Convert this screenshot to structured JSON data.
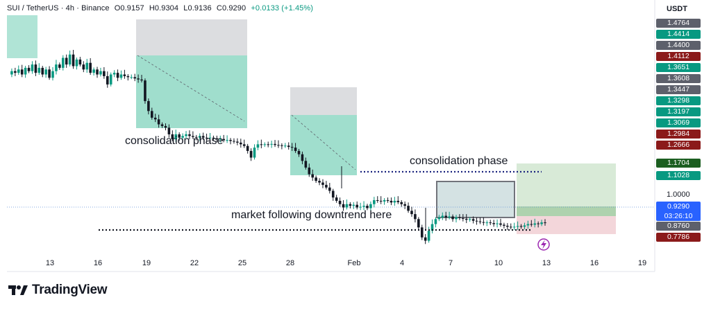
{
  "header": {
    "symbol": "SUI / TetherUS · 4h · Binance",
    "open": "O0.9157",
    "high": "H0.9304",
    "low": "L0.9136",
    "close": "C0.9290",
    "change": "+0.0133 (+1.45%)"
  },
  "price_axis": {
    "currency": "USDT",
    "plain_label": "1.0000",
    "current_price": "0.9290",
    "countdown": "03:26:10"
  },
  "annotations": {
    "consolidation_1": "consolidation phase",
    "consolidation_2": "consolidation phase",
    "downtrend": "market following downtrend here"
  },
  "branding": {
    "wordmark": "TradingView"
  },
  "colors": {
    "up": "#089981",
    "down": "#131722",
    "teal_zone": "#8fd8c4",
    "gray_zone": "#dcdde0",
    "green_zone": "#d8ead7",
    "red_zone": "#f3d6da",
    "marker_purple": "#9c27b0",
    "price_blue": "#2962ff"
  },
  "chart_data": {
    "type": "candlestick",
    "x_tick_labels": [
      "13",
      "16",
      "19",
      "22",
      "25",
      "28",
      "Feb",
      "4",
      "7",
      "10",
      "13",
      "16",
      "19"
    ],
    "ylim": [
      0.75,
      1.5
    ],
    "price_axis_labels": [
      {
        "value": "1.4764",
        "color": "#5d606b"
      },
      {
        "value": "1.4414",
        "color": "#089981"
      },
      {
        "value": "1.4400",
        "color": "#5d606b"
      },
      {
        "value": "1.4112",
        "color": "#8b1a1a"
      },
      {
        "value": "1.3651",
        "color": "#089981"
      },
      {
        "value": "1.3608",
        "color": "#5d606b"
      },
      {
        "value": "1.3447",
        "color": "#5d606b"
      },
      {
        "value": "1.3298",
        "color": "#089981"
      },
      {
        "value": "1.3197",
        "color": "#089981"
      },
      {
        "value": "1.3069",
        "color": "#089981"
      },
      {
        "value": "1.2984",
        "color": "#8b1a1a"
      },
      {
        "value": "1.2666",
        "color": "#8b1a1a"
      },
      {
        "value": "1.1704",
        "color": "#1b5e20"
      },
      {
        "value": "1.1028",
        "color": "#089981"
      },
      {
        "value": "0.8760",
        "color": "#5d606b"
      },
      {
        "value": "0.7786",
        "color": "#8b1a1a"
      }
    ],
    "price_path": [
      [
        0,
        1.33
      ],
      [
        5,
        1.34
      ],
      [
        10,
        1.335
      ],
      [
        15,
        1.345
      ],
      [
        20,
        1.33
      ],
      [
        25,
        1.35
      ],
      [
        30,
        1.34
      ],
      [
        35,
        1.36
      ],
      [
        40,
        1.335
      ],
      [
        45,
        1.35
      ],
      [
        50,
        1.33
      ],
      [
        55,
        1.345
      ],
      [
        60,
        1.32
      ],
      [
        65,
        1.34
      ],
      [
        70,
        1.36
      ],
      [
        75,
        1.35
      ],
      [
        80,
        1.38
      ],
      [
        85,
        1.36
      ],
      [
        90,
        1.39
      ],
      [
        95,
        1.355
      ],
      [
        100,
        1.375
      ],
      [
        105,
        1.36
      ],
      [
        110,
        1.345
      ],
      [
        115,
        1.365
      ],
      [
        120,
        1.335
      ],
      [
        125,
        1.345
      ],
      [
        130,
        1.33
      ],
      [
        135,
        1.34
      ],
      [
        140,
        1.325
      ],
      [
        145,
        1.3
      ],
      [
        150,
        1.33
      ],
      [
        155,
        1.335
      ],
      [
        160,
        1.32
      ],
      [
        165,
        1.33
      ],
      [
        170,
        1.325
      ],
      [
        175,
        1.322
      ],
      [
        180,
        1.322
      ],
      [
        185,
        1.318
      ],
      [
        190,
        1.315
      ],
      [
        195,
        1.312
      ],
      [
        200,
        1.25
      ],
      [
        205,
        1.22
      ],
      [
        210,
        1.2
      ],
      [
        215,
        1.195
      ],
      [
        220,
        1.18
      ],
      [
        225,
        1.175
      ],
      [
        230,
        1.17
      ],
      [
        235,
        1.15
      ],
      [
        240,
        1.135
      ],
      [
        245,
        1.15
      ],
      [
        250,
        1.14
      ],
      [
        255,
        1.145
      ],
      [
        260,
        1.15
      ],
      [
        265,
        1.145
      ],
      [
        270,
        1.142
      ],
      [
        275,
        1.14
      ],
      [
        280,
        1.145
      ],
      [
        285,
        1.14
      ],
      [
        290,
        1.138
      ],
      [
        295,
        1.14
      ],
      [
        300,
        1.138
      ],
      [
        305,
        1.135
      ],
      [
        310,
        1.136
      ],
      [
        315,
        1.132
      ],
      [
        320,
        1.133
      ],
      [
        325,
        1.13
      ],
      [
        330,
        1.128
      ],
      [
        335,
        1.125
      ],
      [
        340,
        1.12
      ],
      [
        345,
        1.115
      ],
      [
        350,
        1.1
      ],
      [
        355,
        1.08
      ],
      [
        360,
        1.11
      ],
      [
        365,
        1.12
      ],
      [
        370,
        1.118
      ],
      [
        375,
        1.12
      ],
      [
        380,
        1.119
      ],
      [
        385,
        1.121
      ],
      [
        390,
        1.118
      ],
      [
        395,
        1.117
      ],
      [
        400,
        1.115
      ],
      [
        405,
        1.116
      ],
      [
        410,
        1.112
      ],
      [
        415,
        1.11
      ],
      [
        420,
        1.1
      ],
      [
        425,
        1.09
      ],
      [
        430,
        1.07
      ],
      [
        435,
        1.05
      ],
      [
        440,
        1.03
      ],
      [
        445,
        1.02
      ],
      [
        450,
        1.01
      ],
      [
        455,
        1.005
      ],
      [
        460,
        0.998
      ],
      [
        465,
        0.99
      ],
      [
        470,
        0.98
      ],
      [
        475,
        0.96
      ],
      [
        480,
        0.95
      ],
      [
        485,
        0.94
      ],
      [
        490,
        0.93
      ],
      [
        495,
        0.94
      ],
      [
        500,
        0.935
      ],
      [
        505,
        0.938
      ],
      [
        510,
        0.93
      ],
      [
        515,
        0.932
      ],
      [
        520,
        0.935
      ],
      [
        525,
        0.928
      ],
      [
        530,
        0.94
      ],
      [
        535,
        0.952
      ],
      [
        540,
        0.95
      ],
      [
        545,
        0.948
      ],
      [
        550,
        0.952
      ],
      [
        555,
        0.95
      ],
      [
        560,
        0.945
      ],
      [
        565,
        0.95
      ],
      [
        570,
        0.946
      ],
      [
        575,
        0.94
      ],
      [
        580,
        0.935
      ],
      [
        585,
        0.92
      ],
      [
        590,
        0.91
      ],
      [
        595,
        0.895
      ],
      [
        600,
        0.87
      ],
      [
        605,
        0.84
      ],
      [
        610,
        0.83
      ],
      [
        615,
        0.86
      ],
      [
        620,
        0.88
      ],
      [
        625,
        0.895
      ],
      [
        630,
        0.9
      ],
      [
        635,
        0.905
      ],
      [
        640,
        0.9
      ],
      [
        645,
        0.903
      ],
      [
        650,
        0.895
      ],
      [
        655,
        0.9
      ],
      [
        660,
        0.898
      ],
      [
        665,
        0.896
      ],
      [
        670,
        0.893
      ],
      [
        675,
        0.895
      ],
      [
        680,
        0.89
      ],
      [
        685,
        0.888
      ],
      [
        690,
        0.886
      ],
      [
        695,
        0.884
      ],
      [
        700,
        0.885
      ],
      [
        705,
        0.883
      ],
      [
        710,
        0.88
      ],
      [
        715,
        0.882
      ],
      [
        720,
        0.878
      ],
      [
        725,
        0.875
      ],
      [
        730,
        0.872
      ],
      [
        735,
        0.87
      ],
      [
        740,
        0.872
      ],
      [
        745,
        0.874
      ],
      [
        750,
        0.872
      ],
      [
        755,
        0.876
      ],
      [
        760,
        0.88
      ],
      [
        765,
        0.878
      ],
      [
        770,
        0.882
      ],
      [
        775,
        0.88
      ],
      [
        780,
        0.885
      ],
      [
        785,
        0.883
      ]
    ]
  }
}
